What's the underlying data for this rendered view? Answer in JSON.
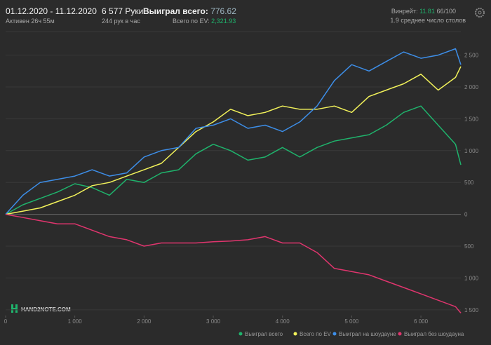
{
  "header": {
    "period": "01.12.2020 - 11.12.2020",
    "active": "Активен 26ч 55м",
    "hands": "6 577 Руки",
    "per_hour": "244 рук в час",
    "won_label": "Выиграл всего:",
    "won_value": "776.62",
    "ev_label": "Всего по EV:",
    "ev_value": "2,321.93",
    "winrate_label": "Винрейт:",
    "winrate_value": "11.81",
    "winrate_unit": "66/100",
    "tables": "1.9 среднее число столов"
  },
  "logo": "HAND2NOTE.COM",
  "chart_data": {
    "type": "line",
    "x": [
      0,
      250,
      500,
      750,
      1000,
      1250,
      1500,
      1750,
      2000,
      2250,
      2500,
      2750,
      3000,
      3250,
      3500,
      3750,
      4000,
      4250,
      4500,
      4750,
      5000,
      5250,
      5500,
      5750,
      6000,
      6250,
      6500,
      6577
    ],
    "series": [
      {
        "name": "Выиграл всего",
        "color": "#1fb36c",
        "values": [
          0,
          150,
          250,
          350,
          480,
          420,
          300,
          550,
          500,
          650,
          700,
          950,
          1100,
          1000,
          850,
          900,
          1050,
          900,
          1050,
          1150,
          1200,
          1250,
          1400,
          1600,
          1700,
          1400,
          1100,
          776.62
        ]
      },
      {
        "name": "Всего по EV",
        "color": "#f2f25a",
        "values": [
          0,
          50,
          100,
          200,
          300,
          450,
          500,
          600,
          700,
          800,
          1050,
          1300,
          1450,
          1650,
          1550,
          1600,
          1700,
          1650,
          1650,
          1700,
          1600,
          1850,
          1950,
          2050,
          2200,
          1950,
          2150,
          2321.93
        ]
      },
      {
        "name": "Выиграл на шоудауне",
        "color": "#3d8ee8",
        "values": [
          0,
          300,
          500,
          550,
          600,
          700,
          600,
          650,
          900,
          1000,
          1050,
          1350,
          1400,
          1500,
          1350,
          1400,
          1300,
          1450,
          1700,
          2100,
          2350,
          2250,
          2400,
          2550,
          2450,
          2500,
          2600,
          2350
        ]
      },
      {
        "name": "Выиграл без шоудауна",
        "color": "#e0356e",
        "values": [
          0,
          -50,
          -100,
          -150,
          -150,
          -250,
          -350,
          -400,
          -500,
          -450,
          -450,
          -450,
          -430,
          -420,
          -400,
          -350,
          -450,
          -450,
          -600,
          -850,
          -900,
          -950,
          -1050,
          -1150,
          -1250,
          -1350,
          -1450,
          -1550
        ]
      }
    ],
    "xlim": [
      0,
      6577
    ],
    "xticks": [
      0,
      {
        "value": 1000,
        "label": "1 000"
      },
      {
        "value": 2000,
        "label": "2 000"
      },
      {
        "value": 3000,
        "label": "3 000"
      },
      {
        "value": 4000,
        "label": "4 000"
      },
      {
        "value": 5000,
        "label": "5 000"
      },
      {
        "value": 6000,
        "label": "6 000"
      }
    ],
    "ylim": [
      -1590,
      2870
    ],
    "yticks": [
      {
        "value": -1500,
        "label": "1 500"
      },
      {
        "value": -1000,
        "label": "1 000"
      },
      {
        "value": -500,
        "label": "500"
      },
      0,
      500,
      {
        "value": 1000,
        "label": "1 000"
      },
      {
        "value": 1500,
        "label": "1 500"
      },
      {
        "value": 2000,
        "label": "2 000"
      },
      {
        "value": 2500,
        "label": "2 500"
      }
    ],
    "grid": true
  }
}
